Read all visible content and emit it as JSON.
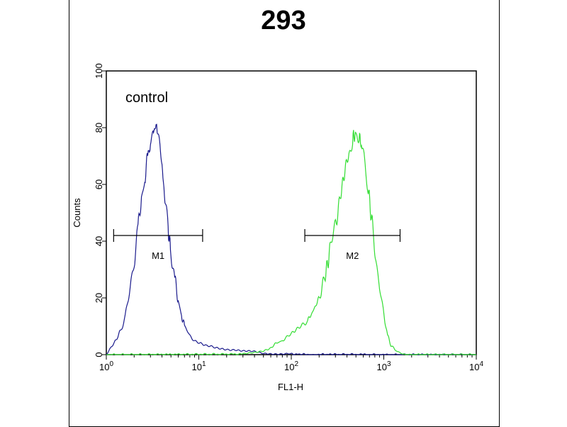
{
  "chart_data": {
    "type": "line",
    "title": "293",
    "xlabel": "FL1-H",
    "ylabel": "Counts",
    "xscale": "log",
    "xlim": [
      1,
      10000
    ],
    "ylim": [
      0,
      100
    ],
    "x_ticks": [
      {
        "value": 1,
        "base": "10",
        "exp": "0"
      },
      {
        "value": 10,
        "base": "10",
        "exp": "1"
      },
      {
        "value": 100,
        "base": "10",
        "exp": "2"
      },
      {
        "value": 1000,
        "base": "10",
        "exp": "3"
      },
      {
        "value": 10000,
        "base": "10",
        "exp": "4"
      }
    ],
    "y_ticks": [
      0,
      20,
      40,
      60,
      80,
      100
    ],
    "grid": false,
    "annotation": "control",
    "series": [
      {
        "color": "#1a1a8c",
        "x": [
          1.0,
          1.2,
          1.4,
          1.6,
          1.8,
          2.0,
          2.2,
          2.4,
          2.6,
          2.8,
          3.0,
          3.2,
          3.4,
          3.6,
          3.8,
          4.0,
          4.3,
          4.6,
          5.0,
          5.5,
          6.0,
          6.5,
          7.0,
          8.0,
          9.0,
          10,
          12,
          15,
          20,
          25,
          30,
          40,
          50,
          60,
          80,
          100,
          150,
          200,
          300,
          500,
          1000,
          10000
        ],
        "y": [
          0,
          4,
          8,
          13,
          22,
          33,
          45,
          55,
          62,
          70,
          76,
          79,
          80,
          77,
          73,
          66,
          55,
          46,
          36,
          27,
          19,
          14,
          10,
          7,
          5,
          4,
          3,
          2.5,
          2,
          1.5,
          1.2,
          1,
          0.6,
          0.4,
          0.3,
          0.2,
          0.1,
          0.1,
          0.1,
          0.1,
          0,
          0
        ]
      },
      {
        "color": "#33dd33",
        "x": [
          1,
          30,
          40,
          50,
          60,
          70,
          80,
          100,
          120,
          150,
          170,
          200,
          230,
          260,
          300,
          340,
          380,
          420,
          460,
          500,
          540,
          580,
          620,
          680,
          750,
          820,
          900,
          1000,
          1100,
          1200,
          1400,
          1600,
          2000,
          10000
        ],
        "y": [
          0,
          0.2,
          0.6,
          1.5,
          2.5,
          4,
          5,
          7,
          9,
          12,
          15,
          20,
          27,
          36,
          45,
          56,
          65,
          71,
          76,
          78,
          77,
          73,
          67,
          58,
          46,
          34,
          23,
          14,
          7,
          3,
          1,
          0.3,
          0,
          0
        ]
      }
    ],
    "markers": [
      {
        "label": "M1",
        "x_start": 1.2,
        "x_end": 11,
        "y": 42
      },
      {
        "label": "M2",
        "x_start": 140,
        "x_end": 1500,
        "y": 42
      }
    ]
  }
}
